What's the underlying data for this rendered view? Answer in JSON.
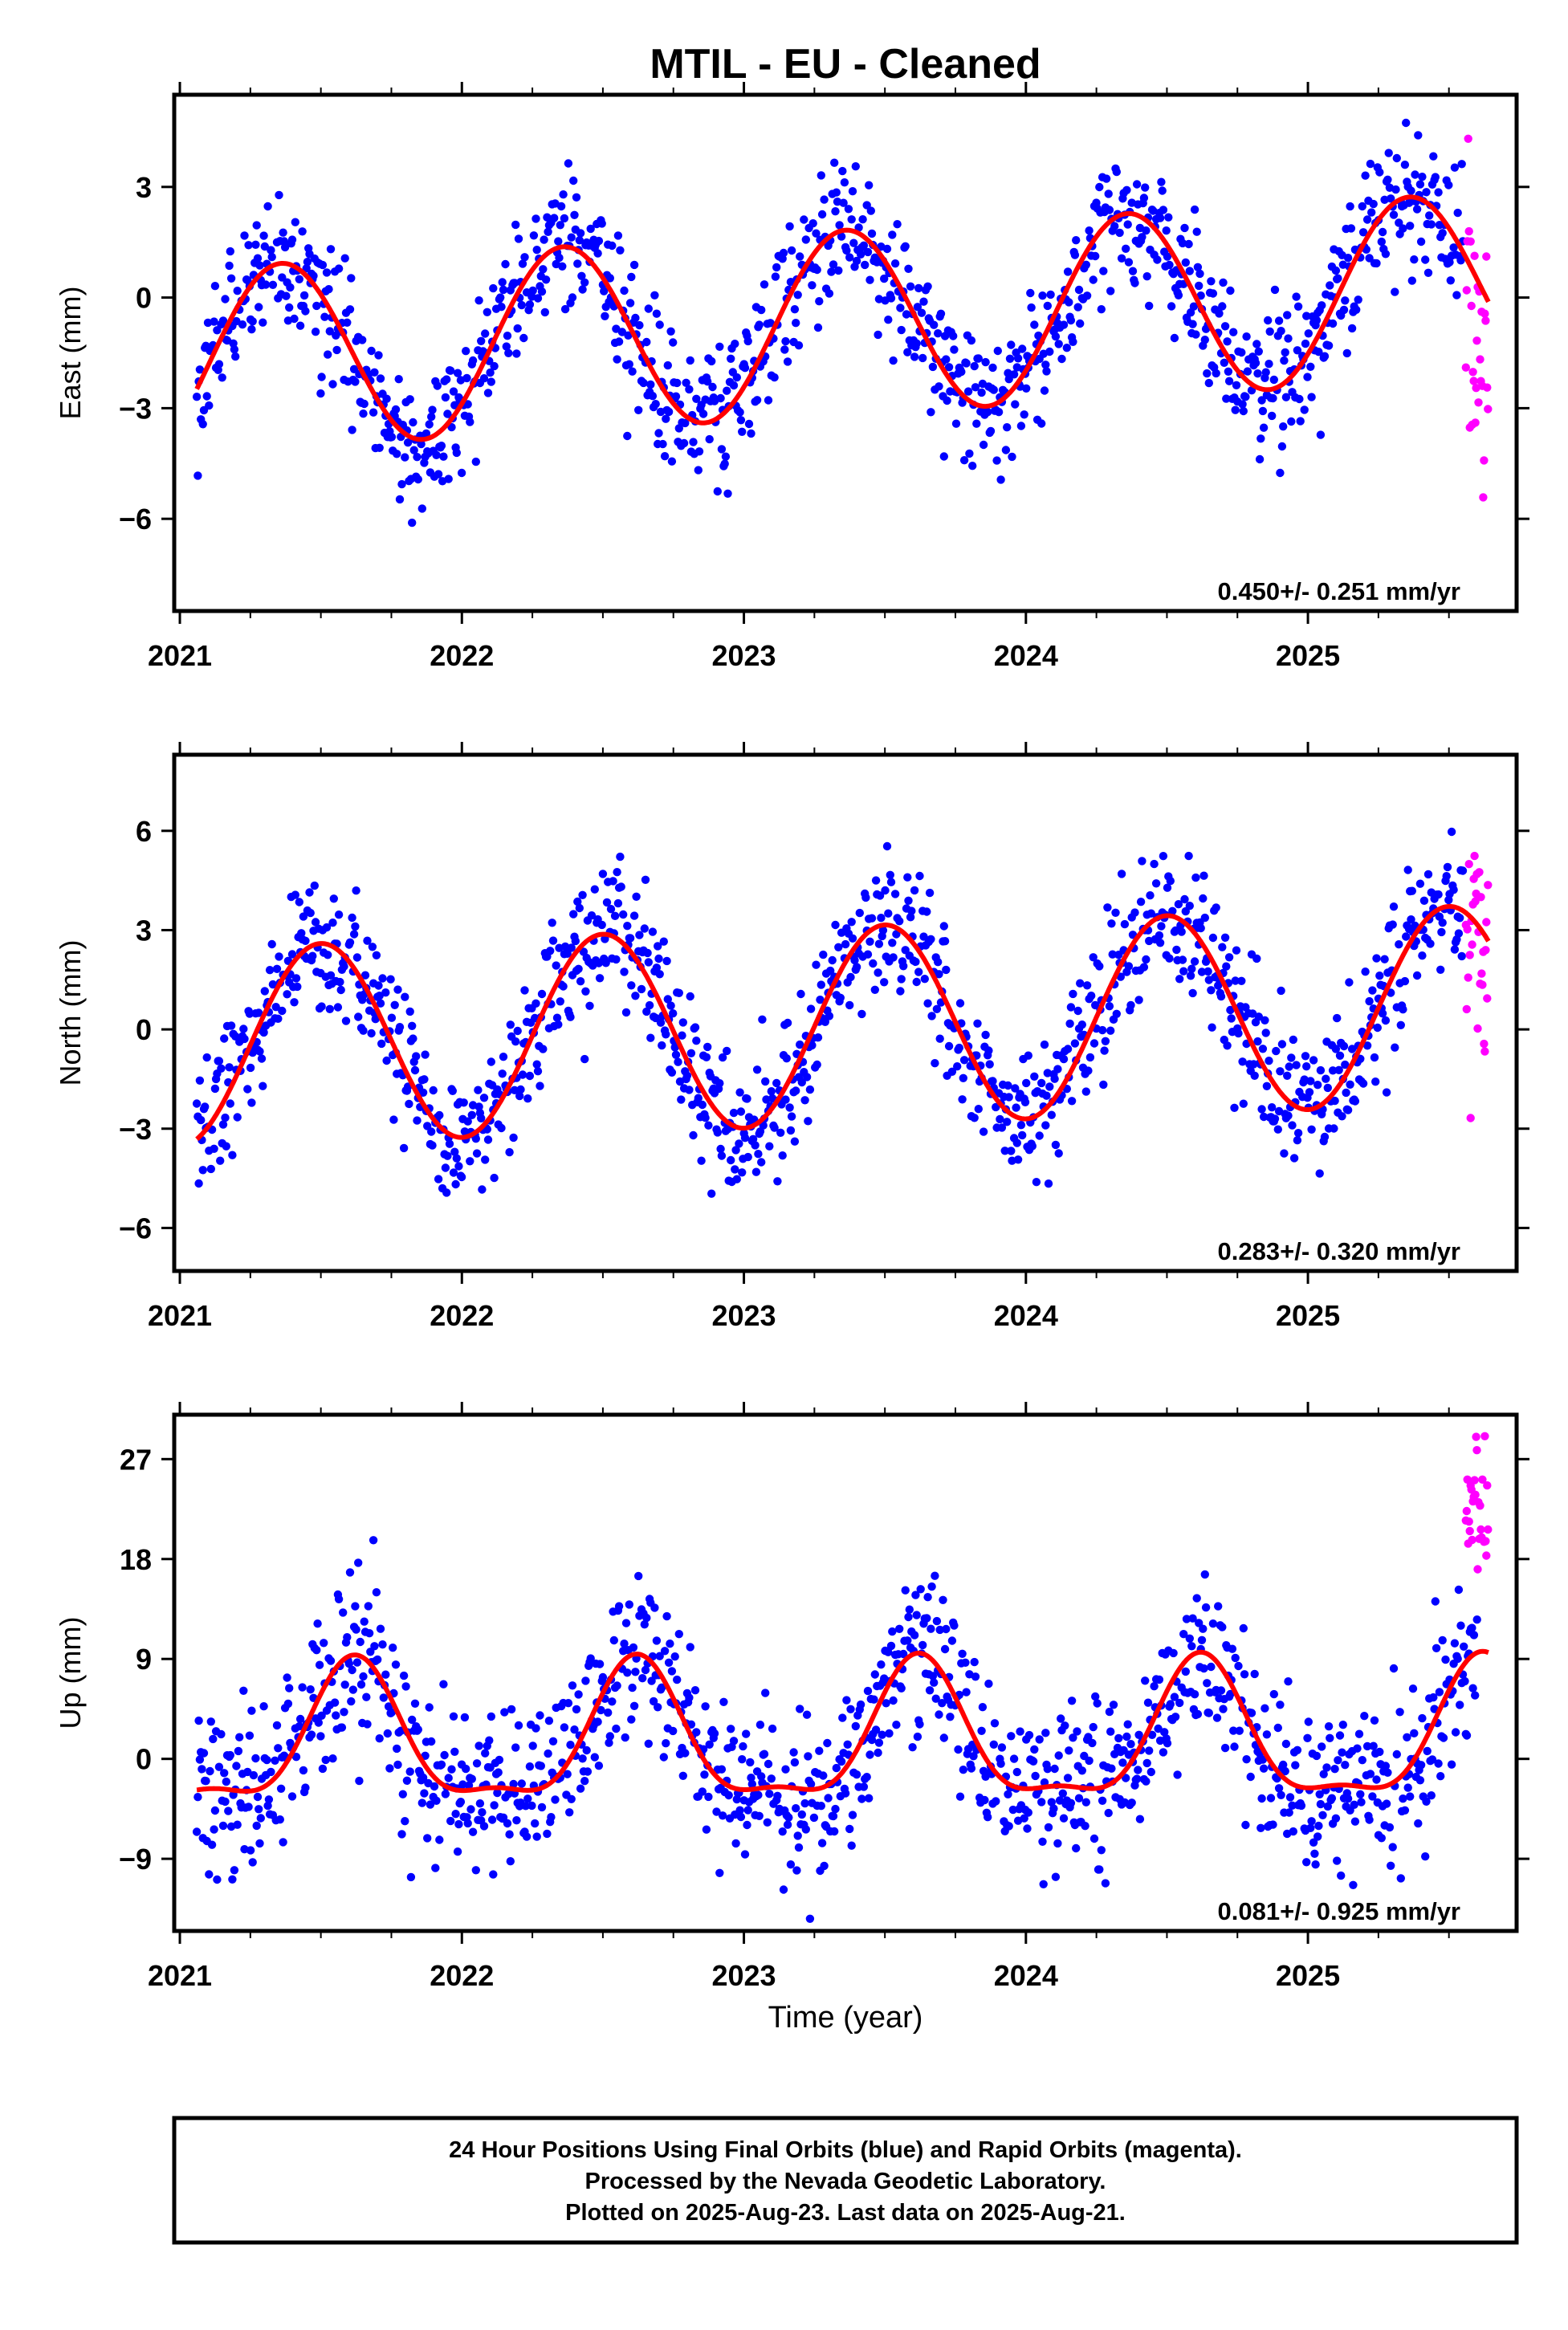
{
  "title": "MTIL  - EU - Cleaned",
  "xlabel": "Time (year)",
  "footer": {
    "line1": "24 Hour Positions Using Final Orbits (blue) and Rapid Orbits (magenta).",
    "line2": "Processed by the Nevada Geodetic Laboratory.",
    "line3": "Plotted on 2025-Aug-23. Last data on 2025-Aug-21."
  },
  "colors": {
    "final_orbits": "#0000ff",
    "rapid_orbits": "#ff00ff",
    "model_fit": "#ff0000",
    "frame": "#000000"
  },
  "chart_data": [
    {
      "type": "scatter",
      "component": "East",
      "ylabel": "East (mm)",
      "xlim": [
        2020.98,
        2025.74
      ],
      "ylim": [
        -8.5,
        5.5
      ],
      "xticks": [
        2021,
        2022,
        2023,
        2024,
        2025
      ],
      "yticks": [
        -6,
        -3,
        0,
        3
      ],
      "ytick_labels": [
        "−6",
        "−3",
        "0",
        "3"
      ],
      "rate_label": "0.450+/- 0.251 mm/yr",
      "model": {
        "offset": -0.7,
        "rate": 0.45,
        "amplitude": 2.5,
        "peak_phase": 0.36
      },
      "scatter_sigma": 0.95,
      "final_orbits_range": [
        2021.06,
        2025.55
      ],
      "rapid_orbits_range": [
        2025.56,
        2025.64
      ],
      "rapid_offset": -1.5,
      "rapid_sigma": 2.2
    },
    {
      "type": "scatter",
      "component": "North",
      "ylabel": "North (mm)",
      "xlim": [
        2020.98,
        2025.74
      ],
      "ylim": [
        -7.3,
        8.3
      ],
      "xticks": [
        2021,
        2022,
        2023,
        2024,
        2025
      ],
      "yticks": [
        -6,
        -3,
        0,
        3,
        6
      ],
      "ytick_labels": [
        "−6",
        "−3",
        "0",
        "3",
        "6"
      ],
      "rate_label": "0.283+/- 0.320 mm/yr",
      "model": {
        "offset": 0.1,
        "rate": 0.28,
        "amplitude": 3.0,
        "peak_phase": 0.5
      },
      "scatter_sigma": 1.05,
      "final_orbits_range": [
        2021.06,
        2025.55
      ],
      "rapid_orbits_range": [
        2025.56,
        2025.64
      ],
      "rapid_offset": 0.0,
      "rapid_sigma": 2.5
    },
    {
      "type": "scatter",
      "component": "Up",
      "ylabel": "Up (mm)",
      "xlim": [
        2020.98,
        2025.74
      ],
      "ylim": [
        -15.5,
        31.0
      ],
      "xticks": [
        2021,
        2022,
        2023,
        2024,
        2025
      ],
      "yticks": [
        -9,
        0,
        9,
        18,
        27
      ],
      "ytick_labels": [
        "−9",
        "0",
        "9",
        "18",
        "27"
      ],
      "rate_label": "0.081+/- 0.925 mm/yr",
      "model": {
        "offset": 1.5,
        "rate": 0.08,
        "amplitude": 6.0,
        "peak_phase": 0.62,
        "harmonic2_amplitude": 2.0
      },
      "scatter_sigma": 3.6,
      "final_orbits_range": [
        2021.06,
        2025.6
      ],
      "rapid_orbits_range": [
        2025.56,
        2025.64
      ],
      "rapid_offset": 14.0,
      "rapid_sigma": 4.5
    }
  ]
}
